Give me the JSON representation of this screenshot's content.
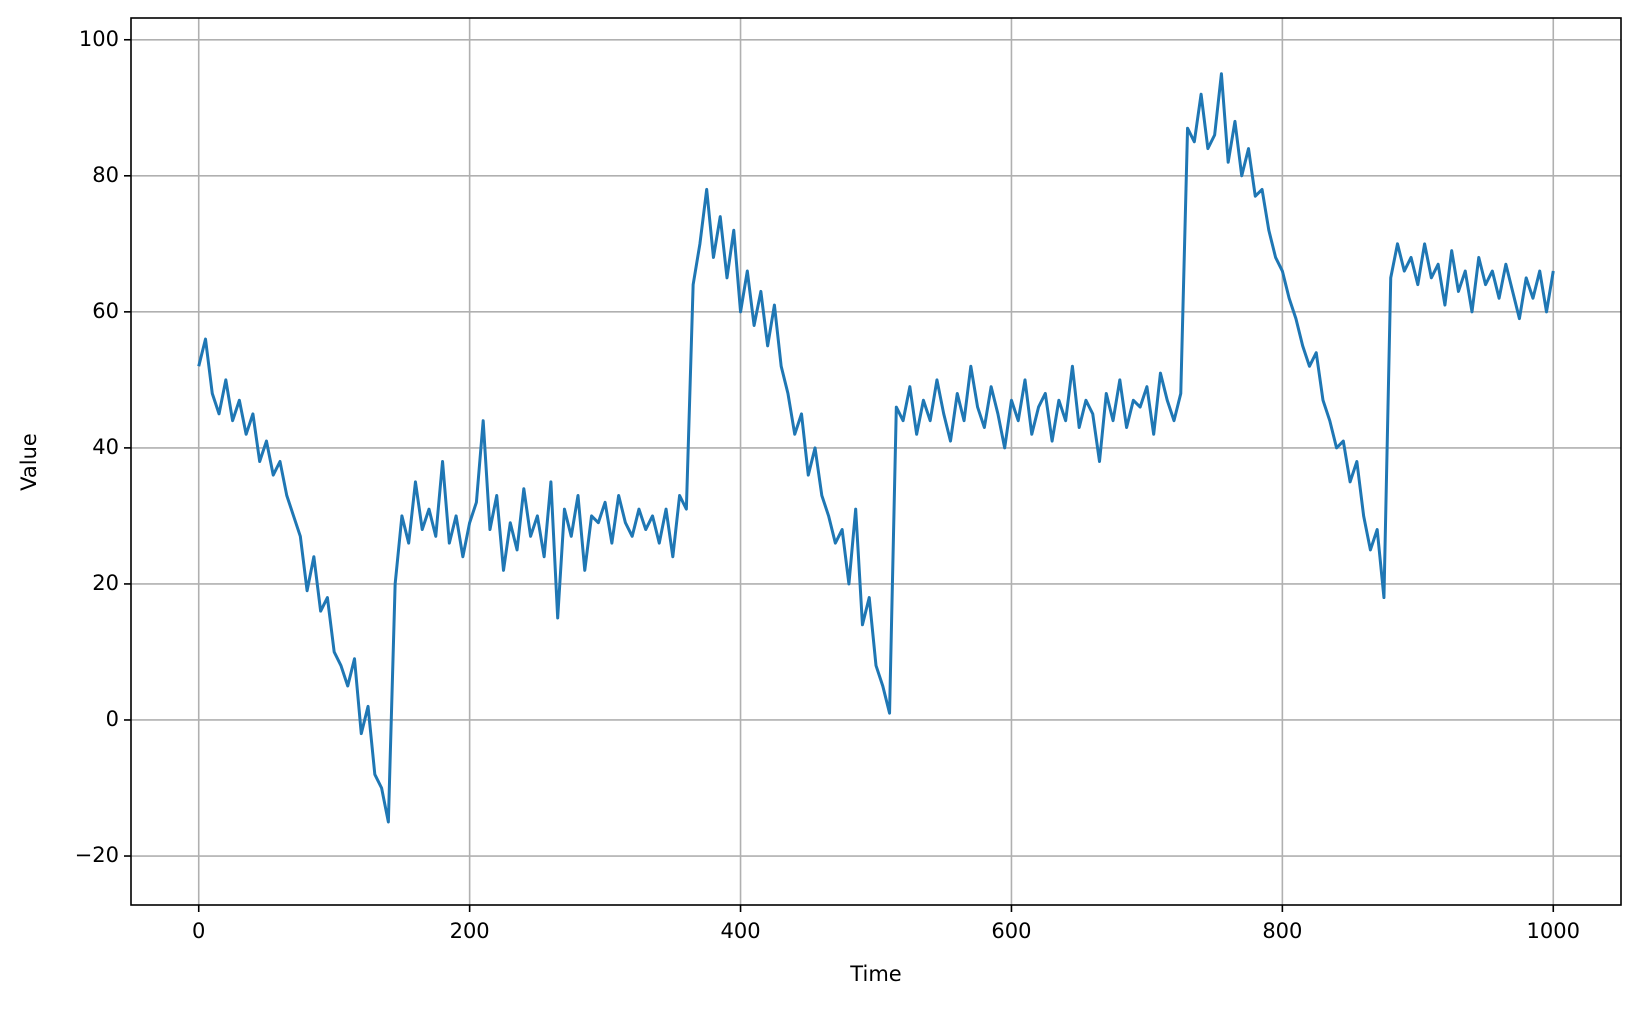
{
  "chart_data": {
    "type": "line",
    "xlabel": "Time",
    "ylabel": "Value",
    "color": "#1f77b4",
    "grid": true,
    "xlim": [
      -50,
      1050
    ],
    "ylim": [
      -27.2,
      103.2
    ],
    "xticks": [
      0,
      200,
      400,
      600,
      800,
      1000
    ],
    "yticks": [
      {
        "value": -20,
        "label": "−20"
      },
      0,
      20,
      40,
      60,
      80,
      100
    ],
    "x": [
      0,
      5,
      10,
      15,
      20,
      25,
      30,
      35,
      40,
      45,
      50,
      55,
      60,
      65,
      70,
      75,
      80,
      85,
      90,
      95,
      100,
      105,
      110,
      115,
      120,
      125,
      130,
      135,
      140,
      145,
      150,
      155,
      160,
      165,
      170,
      175,
      180,
      185,
      190,
      195,
      200,
      205,
      210,
      215,
      220,
      225,
      230,
      235,
      240,
      245,
      250,
      255,
      260,
      265,
      270,
      275,
      280,
      285,
      290,
      295,
      300,
      305,
      310,
      315,
      320,
      325,
      330,
      335,
      340,
      345,
      350,
      355,
      360,
      365,
      370,
      375,
      380,
      385,
      390,
      395,
      400,
      405,
      410,
      415,
      420,
      425,
      430,
      435,
      440,
      445,
      450,
      455,
      460,
      465,
      470,
      475,
      480,
      485,
      490,
      495,
      500,
      505,
      510,
      515,
      520,
      525,
      530,
      535,
      540,
      545,
      550,
      555,
      560,
      565,
      570,
      575,
      580,
      585,
      590,
      595,
      600,
      605,
      610,
      615,
      620,
      625,
      630,
      635,
      640,
      645,
      650,
      655,
      660,
      665,
      670,
      675,
      680,
      685,
      690,
      695,
      700,
      705,
      710,
      715,
      720,
      725,
      730,
      735,
      740,
      745,
      750,
      755,
      760,
      765,
      770,
      775,
      780,
      785,
      790,
      795,
      800,
      805,
      810,
      815,
      820,
      825,
      830,
      835,
      840,
      845,
      850,
      855,
      860,
      865,
      870,
      875,
      880,
      885,
      890,
      895,
      900,
      905,
      910,
      915,
      920,
      925,
      930,
      935,
      940,
      945,
      950,
      955,
      960,
      965,
      970,
      975,
      980,
      985,
      990,
      995,
      1000
    ],
    "values": [
      52,
      56,
      48,
      45,
      50,
      44,
      47,
      42,
      45,
      38,
      41,
      36,
      38,
      33,
      30,
      27,
      19,
      24,
      16,
      18,
      10,
      8,
      5,
      9,
      -2,
      2,
      -8,
      -10,
      -15,
      20,
      30,
      26,
      35,
      28,
      31,
      27,
      38,
      26,
      30,
      24,
      29,
      32,
      44,
      28,
      33,
      22,
      29,
      25,
      34,
      27,
      30,
      24,
      35,
      15,
      31,
      27,
      33,
      22,
      30,
      29,
      32,
      26,
      33,
      29,
      27,
      31,
      28,
      30,
      26,
      31,
      24,
      33,
      31,
      64,
      70,
      78,
      68,
      74,
      65,
      72,
      60,
      66,
      58,
      63,
      55,
      61,
      52,
      48,
      42,
      45,
      36,
      40,
      33,
      30,
      26,
      28,
      20,
      31,
      14,
      18,
      8,
      5,
      1,
      46,
      44,
      49,
      42,
      47,
      44,
      50,
      45,
      41,
      48,
      44,
      52,
      46,
      43,
      49,
      45,
      40,
      47,
      44,
      50,
      42,
      46,
      48,
      41,
      47,
      44,
      52,
      43,
      47,
      45,
      38,
      48,
      44,
      50,
      43,
      47,
      46,
      49,
      42,
      51,
      47,
      44,
      48,
      87,
      85,
      92,
      84,
      86,
      95,
      82,
      88,
      80,
      84,
      77,
      78,
      72,
      68,
      66,
      62,
      59,
      55,
      52,
      54,
      47,
      44,
      40,
      41,
      35,
      38,
      30,
      25,
      28,
      18,
      65,
      70,
      66,
      68,
      64,
      70,
      65,
      67,
      61,
      69,
      63,
      66,
      60,
      68,
      64,
      66,
      62,
      67,
      63,
      59,
      65,
      62,
      66,
      60,
      66
    ]
  }
}
